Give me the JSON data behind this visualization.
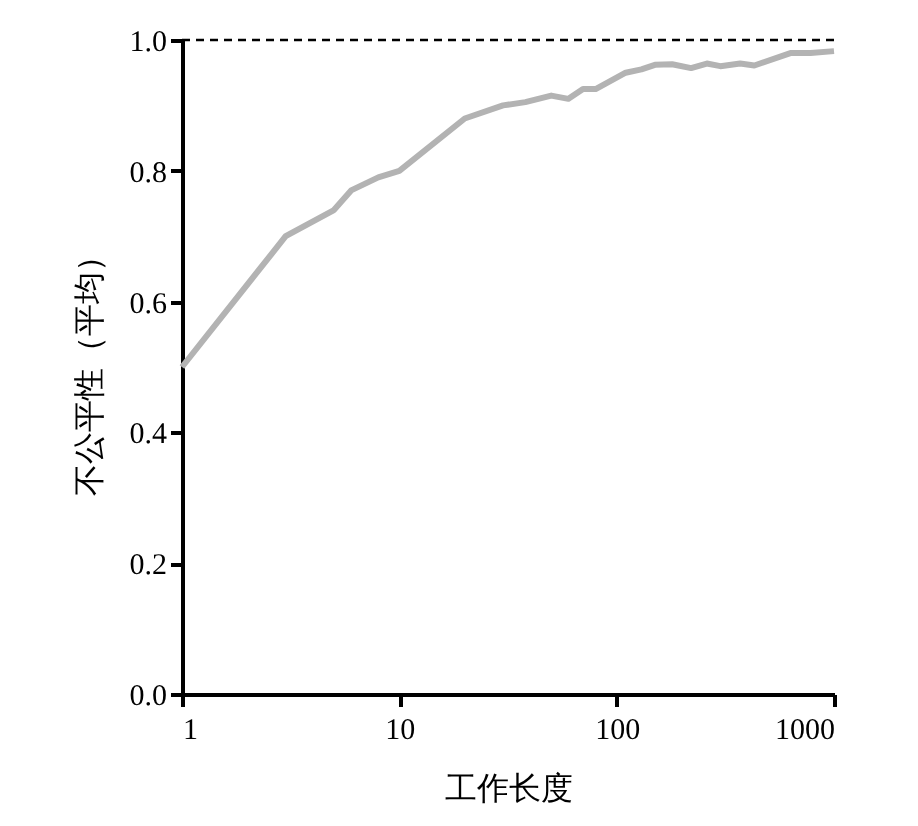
{
  "chart_data": {
    "type": "line",
    "xlabel": "工作长度",
    "ylabel": "不公平性（平均）",
    "log": "x",
    "x": [
      1,
      3,
      5,
      6,
      8,
      10,
      20,
      30,
      38,
      50,
      60,
      70,
      80,
      110,
      130,
      150,
      180,
      220,
      260,
      300,
      370,
      430,
      630,
      780,
      1000
    ],
    "series": [
      {
        "color": "#b3b3b3",
        "values": [
          0.5,
          0.7,
          0.74,
          0.77,
          0.79,
          0.8,
          0.88,
          0.9,
          0.905,
          0.915,
          0.91,
          0.925,
          0.925,
          0.95,
          0.955,
          0.962,
          0.963,
          0.957,
          0.964,
          0.96,
          0.964,
          0.961,
          0.98,
          0.98,
          0.983
        ]
      }
    ],
    "xlim": [
      1,
      1000
    ],
    "xticks": [
      1,
      10,
      100,
      1000
    ],
    "ylim": [
      0,
      1
    ],
    "yticks": [
      {
        "value": 0,
        "label": "0.0"
      },
      {
        "value": 0.2,
        "label": "0.2"
      },
      {
        "value": 0.4,
        "label": "0.4"
      },
      {
        "value": 0.6,
        "label": "0.6"
      },
      {
        "value": 0.8,
        "label": "0.8"
      },
      {
        "value": 1,
        "label": "1.0"
      }
    ],
    "ref_lines": [
      {
        "axis": "y",
        "value": 1,
        "color": "#000000",
        "line_style": "dashed"
      }
    ],
    "grid": false,
    "legend": false,
    "marker": "none",
    "line_style": "solid"
  }
}
